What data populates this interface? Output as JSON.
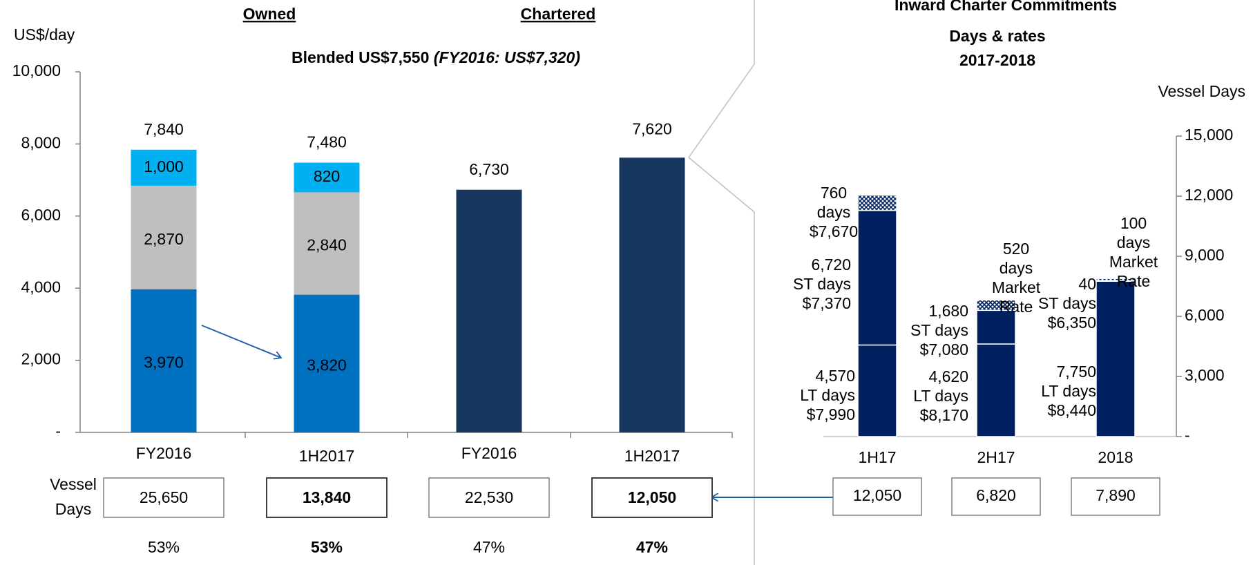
{
  "chart_data": [
    {
      "type": "stacked_bar",
      "y_axis_label": "US$/day",
      "groups": [
        "Owned",
        "Chartered"
      ],
      "subtitle": "Blended US$7,550",
      "subtitle_note": "(FY2016: US$7,320)",
      "categories": [
        "FY2016",
        "1H2017",
        "FY2016",
        "1H2017"
      ],
      "series": [
        {
          "color": "#0070c0",
          "label_color": "#ffffff",
          "values": [
            3970,
            3820,
            null,
            null
          ],
          "value_labels": [
            "3,970",
            "3,820",
            null,
            null
          ]
        },
        {
          "color": "#bfbfbf",
          "label_color": "#000000",
          "values": [
            2870,
            2840,
            null,
            null
          ],
          "value_labels": [
            "2,870",
            "2,840",
            null,
            null
          ]
        },
        {
          "color": "#00b0f0",
          "label_color": "#000000",
          "values": [
            1000,
            820,
            null,
            null
          ],
          "value_labels": [
            "1,000",
            "820",
            null,
            null
          ]
        },
        {
          "color": "#17375e",
          "label_color": "#ffffff",
          "values": [
            null,
            null,
            6730,
            7620
          ],
          "value_labels": [
            null,
            null,
            null,
            null
          ]
        }
      ],
      "totals": [
        7840,
        7480,
        6730,
        7620
      ],
      "total_labels": [
        "7,840",
        "7,480",
        "6,730",
        "7,620"
      ],
      "ylim": [
        0,
        10000
      ],
      "yticks": [
        {
          "value": 0,
          "label": "-"
        },
        {
          "value": 2000,
          "label": "2,000"
        },
        {
          "value": 4000,
          "label": "4,000"
        },
        {
          "value": 6000,
          "label": "6,000"
        },
        {
          "value": 8000,
          "label": "8,000"
        },
        {
          "value": 10000,
          "label": "10,000"
        }
      ],
      "row_label": [
        "Vessel",
        "Days"
      ],
      "vessel_days": [
        "25,650",
        "13,840",
        "22,530",
        "12,050"
      ],
      "shares": [
        "53%",
        "53%",
        "47%",
        "47%"
      ],
      "bold": [
        false,
        true,
        false,
        true
      ]
    },
    {
      "type": "stacked_bar",
      "title": "Inward Charter Commitments",
      "subtitle": [
        "Days & rates",
        "2017-2018"
      ],
      "y_axis_label": "Vessel Days",
      "y_axis_side": "right",
      "categories": [
        "1H17",
        "2H17",
        "2018"
      ],
      "series": [
        {
          "color": "#002060",
          "label_color": "#002060",
          "values": [
            4570,
            4620,
            7750
          ],
          "value_labels": [
            "4,570",
            "4,620",
            "7,750"
          ],
          "label_lines": [
            [
              "LT days",
              "$7,990"
            ],
            [
              "LT days",
              "$8,170"
            ],
            [
              "LT days",
              "$8,440"
            ]
          ]
        },
        {
          "color": "#002060",
          "label_color": "#002060",
          "values": [
            6720,
            1680,
            40
          ],
          "value_labels": [
            "6,720",
            "1,680",
            "40"
          ],
          "label_lines": [
            [
              "ST days",
              "$7,370"
            ],
            [
              "ST days",
              "$7,080"
            ],
            [
              "ST days",
              "$6,350"
            ]
          ]
        },
        {
          "color": "hatch",
          "label_color": "#1f6fbf",
          "values": [
            760,
            520,
            100
          ],
          "value_labels": [
            "760",
            "520",
            "100"
          ],
          "label_lines": [
            [
              "days",
              "$7,670"
            ],
            [
              "days",
              "Market",
              "Rate"
            ],
            [
              "days",
              "Market",
              "Rate"
            ]
          ]
        }
      ],
      "ylim": [
        0,
        15000
      ],
      "yticks": [
        {
          "value": 0,
          "label": "-"
        },
        {
          "value": 3000,
          "label": "3,000"
        },
        {
          "value": 6000,
          "label": "6,000"
        },
        {
          "value": 9000,
          "label": "9,000"
        },
        {
          "value": 12000,
          "label": "12,000"
        },
        {
          "value": 15000,
          "label": "15,000"
        }
      ],
      "vessel_days": [
        "12,050",
        "6,820",
        "7,890"
      ]
    }
  ]
}
